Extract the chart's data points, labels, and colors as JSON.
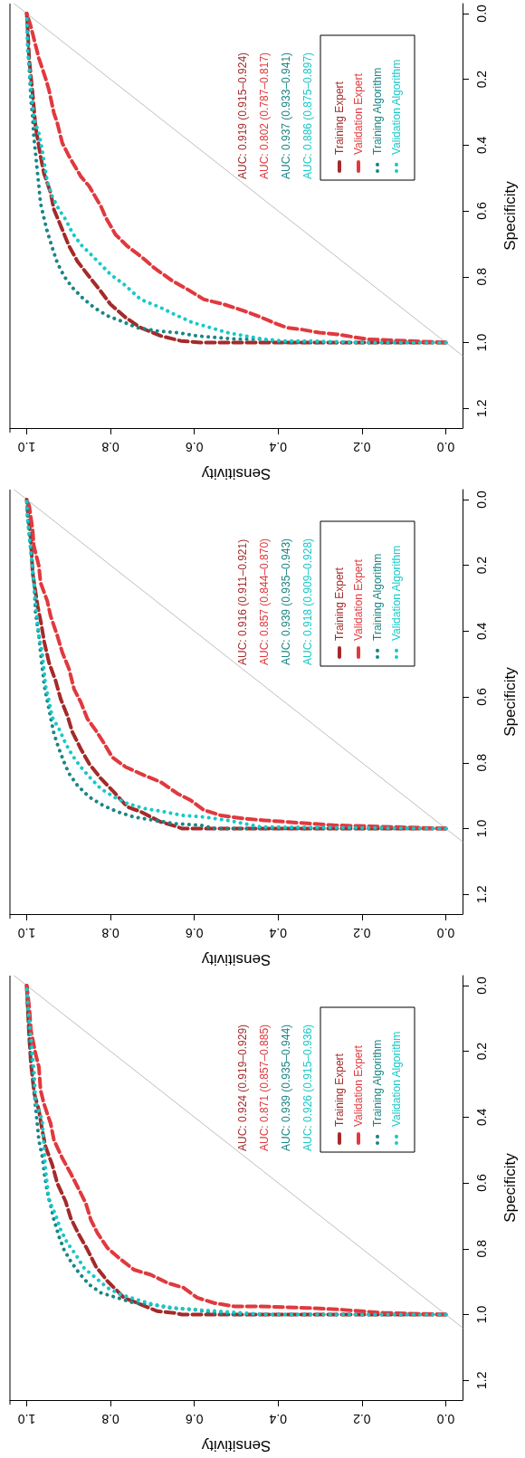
{
  "chart_data": [
    {
      "type": "line",
      "xlabel": "Sensitivity",
      "ylabel": "Specificity",
      "xlim": [
        1.04,
        -0.04
      ],
      "ylim": [
        1.26,
        -0.03
      ],
      "yticks": [
        {
          "value": 0,
          "label": "0.0"
        },
        {
          "value": 0.2,
          "label": "0.2"
        },
        {
          "value": 0.4,
          "label": "0.4"
        },
        {
          "value": 0.6,
          "label": "0.6"
        },
        {
          "value": 0.8,
          "label": "0.8"
        },
        {
          "value": 1,
          "label": "1.0"
        },
        {
          "value": 1.2,
          "label": "1.2"
        }
      ],
      "xticks": [
        {
          "value": 0,
          "label": "0.0"
        },
        {
          "value": 0.2,
          "label": "0.2"
        },
        {
          "value": 0.4,
          "label": "0.4"
        },
        {
          "value": 0.6,
          "label": "0.6"
        },
        {
          "value": 0.8,
          "label": "0.8"
        },
        {
          "value": 1,
          "label": "1.0"
        }
      ],
      "legend": "top right",
      "marker": "none",
      "annotations": [
        "AUC: 0.919 (0.915–0.924)",
        "AUC: 0.802 (0.787–0.817)",
        "AUC: 0.937 (0.933–0.941)",
        "AUC: 0.886 (0.875–0.897)"
      ],
      "series": [
        {
          "color": "#bebebe",
          "line_style": "solid",
          "values": [
            1.04,
            -0.03
          ],
          "x": [
            -0.04,
            1.03
          ]
        },
        {
          "name": "Training Expert",
          "color": "#a52a2a",
          "line_style": "dashed",
          "values": [
            1,
            1,
            0.995,
            0.98,
            0.955,
            0.924,
            0.884,
            0.843,
            0.793,
            0.753,
            0.707,
            0.657,
            0.596,
            0.545,
            0.485,
            0.434,
            0.343,
            0.242,
            0.141,
            0.04,
            0
          ],
          "x": [
            0,
            0.585,
            0.632,
            0.68,
            0.728,
            0.764,
            0.8,
            0.824,
            0.855,
            0.879,
            0.899,
            0.915,
            0.935,
            0.943,
            0.959,
            0.967,
            0.979,
            0.986,
            0.994,
            0.998,
            1
          ]
        },
        {
          "name": "Validation Expert",
          "color": "#e0393e",
          "line_style": "dashed",
          "values": [
            1,
            0.99,
            0.975,
            0.97,
            0.96,
            0.955,
            0.944,
            0.919,
            0.904,
            0.884,
            0.869,
            0.838,
            0.813,
            0.773,
            0.742,
            0.707,
            0.672,
            0.621,
            0.586,
            0.525,
            0.495,
            0.434,
            0.394,
            0.333,
            0.303,
            0.232,
            0.197,
            0.136,
            0.096,
            0.04,
            0
          ],
          "x": [
            0,
            0.187,
            0.259,
            0.302,
            0.346,
            0.378,
            0.402,
            0.449,
            0.481,
            0.529,
            0.577,
            0.617,
            0.652,
            0.696,
            0.724,
            0.76,
            0.788,
            0.811,
            0.823,
            0.851,
            0.871,
            0.899,
            0.915,
            0.927,
            0.935,
            0.947,
            0.955,
            0.971,
            0.979,
            0.99,
            1
          ]
        },
        {
          "name": "Training Algorithm",
          "color": "#1a8585",
          "line_style": "dotted",
          "values": [
            1,
            1,
            0.99,
            0.99,
            0.985,
            0.98,
            0.97,
            0.965,
            0.955,
            0.934,
            0.919,
            0.894,
            0.864,
            0.833,
            0.798,
            0.758,
            0.712,
            0.667,
            0.626,
            0.576,
            0.525,
            0.424,
            0.374,
            0.313,
            0.263,
            0.162,
            0.061,
            0
          ],
          "x": [
            0,
            0.386,
            0.442,
            0.497,
            0.545,
            0.593,
            0.64,
            0.688,
            0.736,
            0.776,
            0.807,
            0.839,
            0.867,
            0.891,
            0.911,
            0.927,
            0.939,
            0.95,
            0.958,
            0.967,
            0.971,
            0.979,
            0.983,
            0.986,
            0.99,
            0.994,
            0.998,
            1
          ]
        },
        {
          "name": "Validation Algorithm",
          "color": "#18c8c8",
          "line_style": "dotted",
          "values": [
            1,
            1,
            0.995,
            0.995,
            0.99,
            0.97,
            0.955,
            0.939,
            0.914,
            0.894,
            0.869,
            0.823,
            0.793,
            0.763,
            0.732,
            0.702,
            0.667,
            0.626,
            0.596,
            0.556,
            0.51,
            0.414,
            0.364,
            0.323,
            0.273,
            0.222,
            0.162,
            0.111,
            0
          ],
          "x": [
            0,
            0.187,
            0.338,
            0.386,
            0.434,
            0.521,
            0.561,
            0.605,
            0.648,
            0.68,
            0.728,
            0.768,
            0.8,
            0.823,
            0.847,
            0.871,
            0.891,
            0.907,
            0.923,
            0.939,
            0.951,
            0.963,
            0.971,
            0.982,
            0.986,
            0.99,
            0.994,
            0.998,
            1
          ]
        }
      ]
    },
    {
      "type": "line",
      "xlabel": "Sensitivity",
      "ylabel": "Specificity",
      "xlim": [
        1.04,
        -0.04
      ],
      "ylim": [
        1.26,
        -0.03
      ],
      "yticks": [
        {
          "value": 0,
          "label": "0.0"
        },
        {
          "value": 0.2,
          "label": "0.2"
        },
        {
          "value": 0.4,
          "label": "0.4"
        },
        {
          "value": 0.6,
          "label": "0.6"
        },
        {
          "value": 0.8,
          "label": "0.8"
        },
        {
          "value": 1,
          "label": "1.0"
        },
        {
          "value": 1.2,
          "label": "1.2"
        }
      ],
      "xticks": [
        {
          "value": 0,
          "label": "0.0"
        },
        {
          "value": 0.2,
          "label": "0.2"
        },
        {
          "value": 0.4,
          "label": "0.4"
        },
        {
          "value": 0.6,
          "label": "0.6"
        },
        {
          "value": 0.8,
          "label": "0.8"
        },
        {
          "value": 1,
          "label": "1.0"
        }
      ],
      "legend": "top right",
      "marker": "none",
      "annotations": [
        "AUC: 0.916 (0.911–0.921)",
        "AUC: 0.857 (0.844–0.870)",
        "AUC: 0.939 (0.935–0.943)",
        "AUC: 0.918 (0.909–0.928)"
      ],
      "series": [
        {
          "color": "#bebebe",
          "line_style": "solid",
          "values": [
            1.04,
            -0.03
          ],
          "x": [
            -0.04,
            1.03
          ]
        },
        {
          "name": "Training Expert",
          "color": "#a52a2a",
          "line_style": "dashed",
          "values": [
            1,
            1,
            0.995,
            0.98,
            0.949,
            0.934,
            0.889,
            0.848,
            0.803,
            0.758,
            0.707,
            0.657,
            0.606,
            0.551,
            0.495,
            0.434,
            0.374,
            0.323,
            0.222,
            0.121,
            0.03,
            0
          ],
          "x": [
            0,
            0.63,
            0.64,
            0.68,
            0.728,
            0.76,
            0.792,
            0.823,
            0.851,
            0.871,
            0.891,
            0.903,
            0.919,
            0.931,
            0.947,
            0.958,
            0.966,
            0.974,
            0.986,
            0.99,
            0.998,
            1
          ]
        },
        {
          "name": "Validation Expert",
          "color": "#e0393e",
          "line_style": "dashed",
          "values": [
            1,
            0.99,
            0.985,
            0.98,
            0.975,
            0.97,
            0.96,
            0.944,
            0.914,
            0.894,
            0.859,
            0.838,
            0.813,
            0.783,
            0.742,
            0.702,
            0.667,
            0.616,
            0.576,
            0.515,
            0.465,
            0.414,
            0.354,
            0.308,
            0.253,
            0.202,
            0.141,
            0.091,
            0.02,
            0
          ],
          "x": [
            0,
            0.267,
            0.322,
            0.378,
            0.433,
            0.481,
            0.537,
            0.577,
            0.609,
            0.64,
            0.68,
            0.72,
            0.764,
            0.796,
            0.815,
            0.835,
            0.855,
            0.871,
            0.887,
            0.899,
            0.915,
            0.927,
            0.943,
            0.951,
            0.967,
            0.971,
            0.983,
            0.986,
            0.994,
            1
          ]
        },
        {
          "name": "Training Algorithm",
          "color": "#1a8585",
          "line_style": "dotted",
          "values": [
            1,
            1,
            0.99,
            0.985,
            0.975,
            0.965,
            0.949,
            0.929,
            0.904,
            0.869,
            0.833,
            0.798,
            0.758,
            0.712,
            0.662,
            0.611,
            0.566,
            0.52,
            0.465,
            0.414,
            0.343,
            0.263,
            0.152,
            0.051,
            0
          ],
          "x": [
            0,
            0.55,
            0.585,
            0.648,
            0.696,
            0.744,
            0.784,
            0.819,
            0.851,
            0.879,
            0.899,
            0.911,
            0.923,
            0.935,
            0.943,
            0.951,
            0.958,
            0.962,
            0.967,
            0.971,
            0.979,
            0.982,
            0.99,
            0.998,
            1
          ]
        },
        {
          "name": "Validation Algorithm",
          "color": "#18c8c8",
          "line_style": "dotted",
          "values": [
            1,
            0.995,
            0.975,
            0.965,
            0.96,
            0.949,
            0.939,
            0.924,
            0.904,
            0.879,
            0.848,
            0.813,
            0.778,
            0.742,
            0.697,
            0.662,
            0.611,
            0.566,
            0.465,
            0.414,
            0.364,
            0.313,
            0.212,
            0.162,
            0.111,
            0.061,
            0
          ],
          "x": [
            0,
            0.442,
            0.521,
            0.577,
            0.629,
            0.672,
            0.72,
            0.76,
            0.792,
            0.823,
            0.847,
            0.871,
            0.891,
            0.907,
            0.923,
            0.939,
            0.947,
            0.955,
            0.963,
            0.971,
            0.975,
            0.979,
            0.986,
            0.99,
            0.994,
            0.998,
            1
          ]
        }
      ]
    },
    {
      "type": "line",
      "xlabel": "Sensitivity",
      "ylabel": "Specificity",
      "xlim": [
        1.04,
        -0.04
      ],
      "ylim": [
        1.26,
        -0.03
      ],
      "yticks": [
        {
          "value": 0,
          "label": "0.0"
        },
        {
          "value": 0.2,
          "label": "0.2"
        },
        {
          "value": 0.4,
          "label": "0.4"
        },
        {
          "value": 0.6,
          "label": "0.6"
        },
        {
          "value": 0.8,
          "label": "0.8"
        },
        {
          "value": 1,
          "label": "1.0"
        },
        {
          "value": 1.2,
          "label": "1.2"
        }
      ],
      "xticks": [
        {
          "value": 0,
          "label": "0.0"
        },
        {
          "value": 0.2,
          "label": "0.2"
        },
        {
          "value": 0.4,
          "label": "0.4"
        },
        {
          "value": 0.6,
          "label": "0.6"
        },
        {
          "value": 0.8,
          "label": "0.8"
        },
        {
          "value": 1,
          "label": "1.0"
        }
      ],
      "legend": "top right",
      "marker": "none",
      "annotations": [
        "AUC: 0.924 (0.919–0.929)",
        "AUC: 0.871 (0.857–0.885)",
        "AUC: 0.939 (0.935–0.944)",
        "AUC: 0.926 (0.915–0.936)"
      ],
      "series": [
        {
          "color": "#bebebe",
          "line_style": "solid",
          "values": [
            1.04,
            -0.03
          ],
          "x": [
            -0.04,
            1.03
          ]
        },
        {
          "name": "Training Expert",
          "color": "#a52a2a",
          "line_style": "dashed",
          "values": [
            1,
            1,
            0.995,
            0.99,
            0.965,
            0.949,
            0.899,
            0.854,
            0.803,
            0.758,
            0.707,
            0.657,
            0.601,
            0.545,
            0.49,
            0.44,
            0.379,
            0.328,
            0.237,
            0.157,
            0.056,
            0
          ],
          "x": [
            0,
            0.63,
            0.648,
            0.688,
            0.736,
            0.768,
            0.807,
            0.835,
            0.855,
            0.875,
            0.895,
            0.907,
            0.927,
            0.939,
            0.955,
            0.963,
            0.971,
            0.982,
            0.99,
            0.994,
            0.998,
            1
          ]
        },
        {
          "name": "Validation Expert",
          "color": "#e0393e",
          "line_style": "dashed",
          "values": [
            1,
            0.995,
            0.985,
            0.98,
            0.975,
            0.975,
            0.965,
            0.949,
            0.919,
            0.904,
            0.879,
            0.864,
            0.828,
            0.798,
            0.753,
            0.712,
            0.662,
            0.621,
            0.571,
            0.525,
            0.47,
            0.419,
            0.359,
            0.318,
            0.247,
            0.207,
            0.136,
            0.066,
            0
          ],
          "x": [
            0,
            0.147,
            0.251,
            0.33,
            0.442,
            0.505,
            0.553,
            0.593,
            0.625,
            0.664,
            0.704,
            0.744,
            0.78,
            0.807,
            0.831,
            0.847,
            0.859,
            0.875,
            0.895,
            0.915,
            0.935,
            0.943,
            0.959,
            0.967,
            0.971,
            0.979,
            0.99,
            0.994,
            1
          ]
        },
        {
          "name": "Training Algorithm",
          "color": "#1a8585",
          "line_style": "dotted",
          "values": [
            1,
            1,
            0.995,
            0.985,
            0.98,
            0.97,
            0.965,
            0.949,
            0.934,
            0.909,
            0.874,
            0.838,
            0.803,
            0.763,
            0.712,
            0.667,
            0.626,
            0.571,
            0.525,
            0.47,
            0.419,
            0.369,
            0.258,
            0.157,
            0.056,
            0
          ],
          "x": [
            0,
            0.5,
            0.553,
            0.601,
            0.656,
            0.7,
            0.744,
            0.784,
            0.823,
            0.851,
            0.875,
            0.895,
            0.911,
            0.923,
            0.935,
            0.943,
            0.951,
            0.958,
            0.962,
            0.971,
            0.975,
            0.979,
            0.986,
            0.994,
            0.998,
            1
          ]
        },
        {
          "name": "Validation Algorithm",
          "color": "#18c8c8",
          "line_style": "dotted",
          "values": [
            1,
            1,
            0.995,
            0.99,
            0.985,
            0.98,
            0.97,
            0.955,
            0.939,
            0.919,
            0.889,
            0.859,
            0.818,
            0.783,
            0.742,
            0.697,
            0.652,
            0.561,
            0.409,
            0.354,
            0.268,
            0.217,
            0.157,
            0.106,
            0
          ],
          "x": [
            0,
            0.426,
            0.489,
            0.545,
            0.601,
            0.648,
            0.696,
            0.736,
            0.776,
            0.807,
            0.835,
            0.863,
            0.883,
            0.903,
            0.919,
            0.931,
            0.947,
            0.955,
            0.963,
            0.979,
            0.982,
            0.986,
            0.99,
            0.994,
            1
          ]
        }
      ]
    }
  ]
}
